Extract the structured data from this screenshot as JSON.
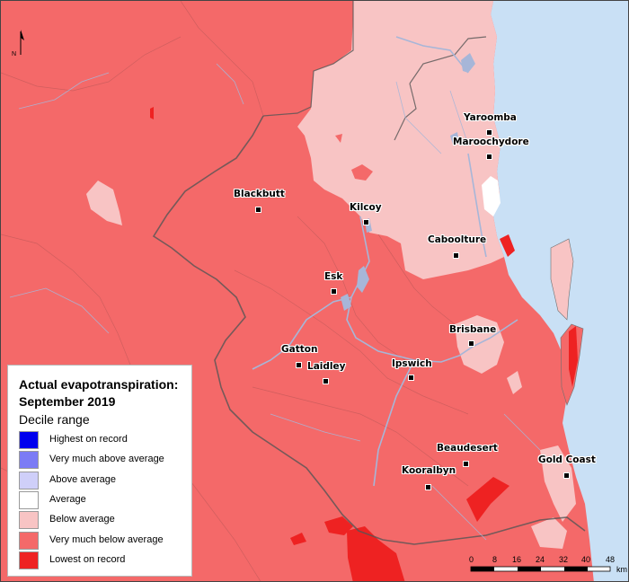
{
  "map": {
    "colors": {
      "ocean": "#c9e0f5",
      "very_much_below": "#f46969",
      "below": "#f8c4c4",
      "lowest": "#ee2222",
      "average": "#ffffff",
      "water": "#a7b6d8",
      "boundary": "#6f6f6f"
    },
    "north_label": "N",
    "towns": [
      {
        "name": "Yaroomba"
      },
      {
        "name": "Maroochydore"
      },
      {
        "name": "Blackbutt"
      },
      {
        "name": "Kilcoy"
      },
      {
        "name": "Caboolture"
      },
      {
        "name": "Esk"
      },
      {
        "name": "Brisbane"
      },
      {
        "name": "Gatton"
      },
      {
        "name": "Laidley"
      },
      {
        "name": "Ipswich"
      },
      {
        "name": "Beaudesert"
      },
      {
        "name": "Gold Coast"
      },
      {
        "name": "Kooralbyn"
      }
    ]
  },
  "legend": {
    "title_line1": "Actual evapotranspiration:",
    "title_line2": "September 2019",
    "subtitle": "Decile range",
    "items": [
      {
        "label": "Highest on record",
        "color": "#0000ee"
      },
      {
        "label": "Very much above average",
        "color": "#7b7bf5"
      },
      {
        "label": "Above average",
        "color": "#cfcff9"
      },
      {
        "label": "Average",
        "color": "#ffffff"
      },
      {
        "label": "Below average",
        "color": "#f8c4c4"
      },
      {
        "label": "Very much below average",
        "color": "#f46969"
      },
      {
        "label": "Lowest on record",
        "color": "#ee2222"
      }
    ]
  },
  "scale": {
    "ticks": [
      "0",
      "8",
      "16",
      "24",
      "32",
      "40",
      "48"
    ],
    "unit": "km"
  }
}
